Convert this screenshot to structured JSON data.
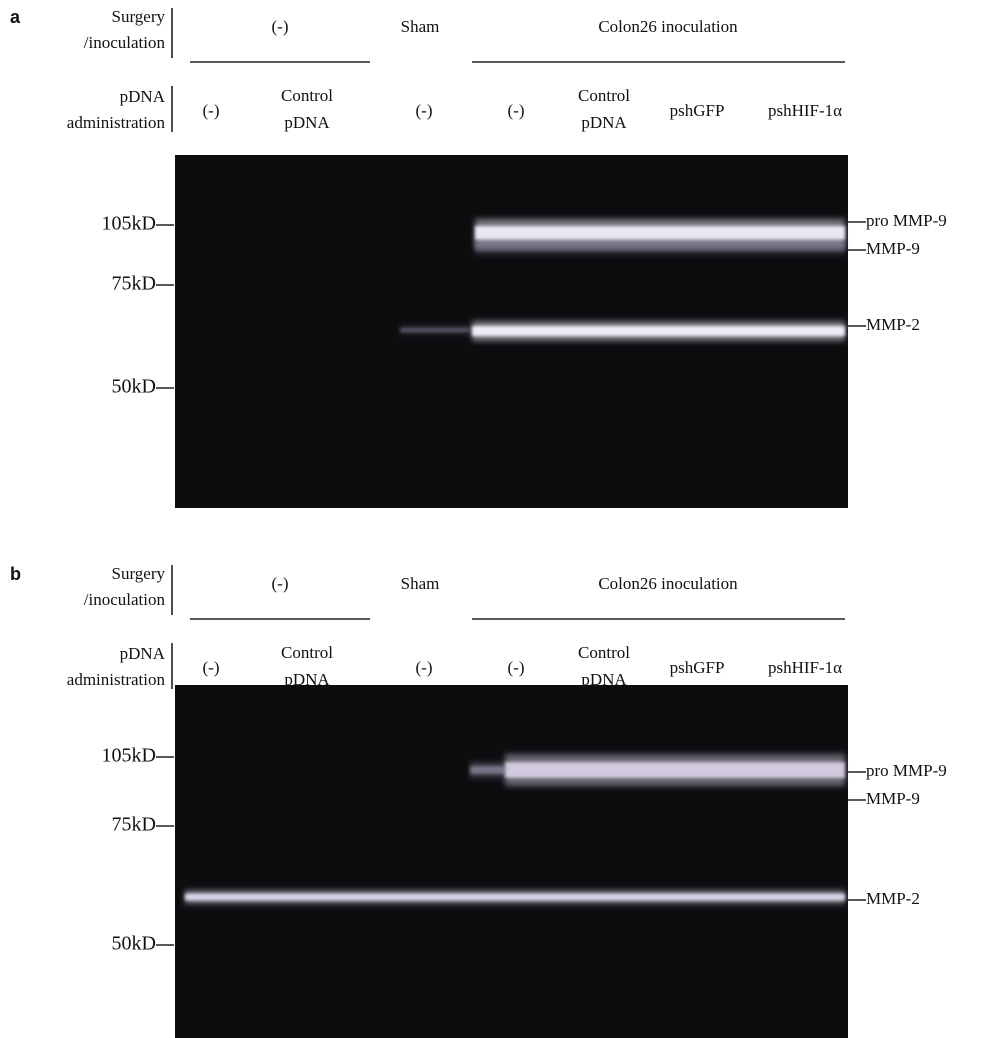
{
  "panels": [
    {
      "letter": "a",
      "surgery_label": [
        "Surgery",
        "/inoculation"
      ],
      "pdna_label": [
        "pDNA",
        "administration"
      ],
      "groups": [
        "(-)",
        "Sham",
        "Colon26 inoculation"
      ],
      "lanes": [
        [
          "(-)"
        ],
        [
          "Control",
          "pDNA"
        ],
        [
          "(-)"
        ],
        [
          "(-)"
        ],
        [
          "Control",
          "pDNA"
        ],
        [
          "pshGFP"
        ],
        [
          "pshHIF-1α"
        ]
      ],
      "markers": [
        "105kD",
        "75kD",
        "50kD"
      ],
      "bands": [
        "pro MMP-9",
        "MMP-9",
        "MMP-2"
      ]
    },
    {
      "letter": "b",
      "surgery_label": [
        "Surgery",
        "/inoculation"
      ],
      "pdna_label": [
        "pDNA",
        "administration"
      ],
      "groups": [
        "(-)",
        "Sham",
        "Colon26 inoculation"
      ],
      "lanes": [
        [
          "(-)"
        ],
        [
          "Control",
          "pDNA"
        ],
        [
          "(-)"
        ],
        [
          "(-)"
        ],
        [
          "Control",
          "pDNA"
        ],
        [
          "pshGFP"
        ],
        [
          "pshHIF-1α"
        ]
      ],
      "markers": [
        "105kD",
        "75kD",
        "50kD"
      ],
      "bands": [
        "pro MMP-9",
        "MMP-9",
        "MMP-2"
      ]
    }
  ]
}
